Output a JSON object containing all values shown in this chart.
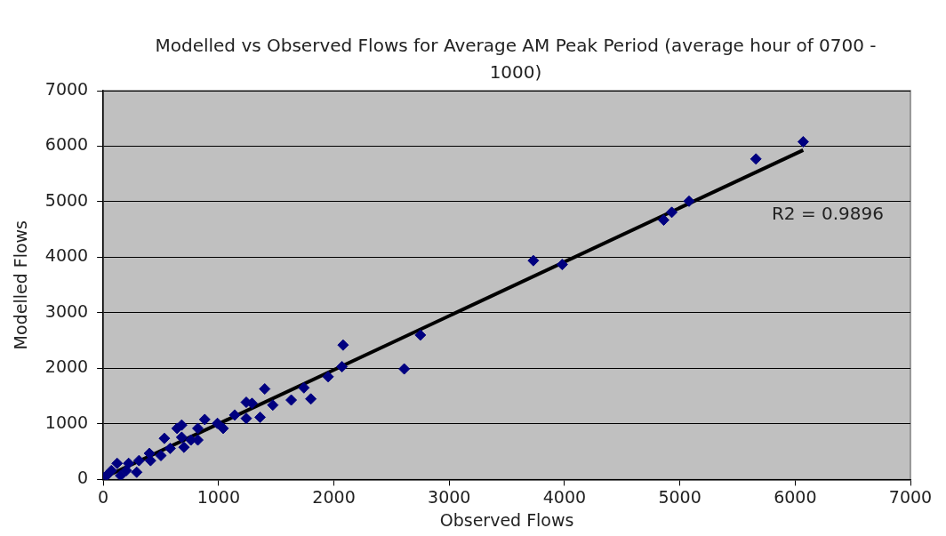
{
  "chart_data": {
    "type": "scatter",
    "title": "Modelled vs Observed Flows for Average AM Peak Period (average hour of 0700 - 1000)",
    "xlabel": "Observed Flows",
    "ylabel": "Modelled Flows",
    "xlim": [
      0,
      7000
    ],
    "xticks": [
      0,
      1000,
      2000,
      3000,
      4000,
      5000,
      6000,
      7000
    ],
    "ylim": [
      0,
      7000
    ],
    "yticks": [
      0,
      1000,
      2000,
      3000,
      4000,
      5000,
      6000,
      7000
    ],
    "grid": "y",
    "legend": false,
    "marker": "diamond",
    "annotations": [
      "R2 = 0.9896"
    ],
    "series": [
      {
        "color": "#000080",
        "x": [
          6070,
          5660,
          5080,
          4930,
          4860,
          3980,
          3730,
          2750,
          2610,
          2080,
          2070,
          1950,
          1800,
          1740,
          1630,
          1470,
          1400,
          1360,
          1290,
          1240,
          1240,
          1140,
          1040,
          990,
          880,
          820,
          820,
          760,
          680,
          640,
          680,
          700,
          530,
          580,
          500,
          400,
          410,
          310,
          290,
          220,
          200,
          120,
          150,
          70,
          30,
          10
        ],
        "values": [
          6080,
          5770,
          5010,
          4810,
          4670,
          3870,
          3940,
          2600,
          1990,
          2420,
          2030,
          1850,
          1450,
          1650,
          1430,
          1340,
          1630,
          1120,
          1370,
          1390,
          1100,
          1160,
          920,
          1010,
          1080,
          920,
          710,
          710,
          980,
          920,
          760,
          580,
          740,
          560,
          430,
          470,
          340,
          340,
          130,
          290,
          160,
          290,
          70,
          160,
          70,
          40
        ]
      },
      {
        "type": "line",
        "color": "#000000",
        "marker": "none",
        "x": [
          0,
          6070
        ],
        "values": [
          30,
          5930
        ]
      }
    ]
  }
}
